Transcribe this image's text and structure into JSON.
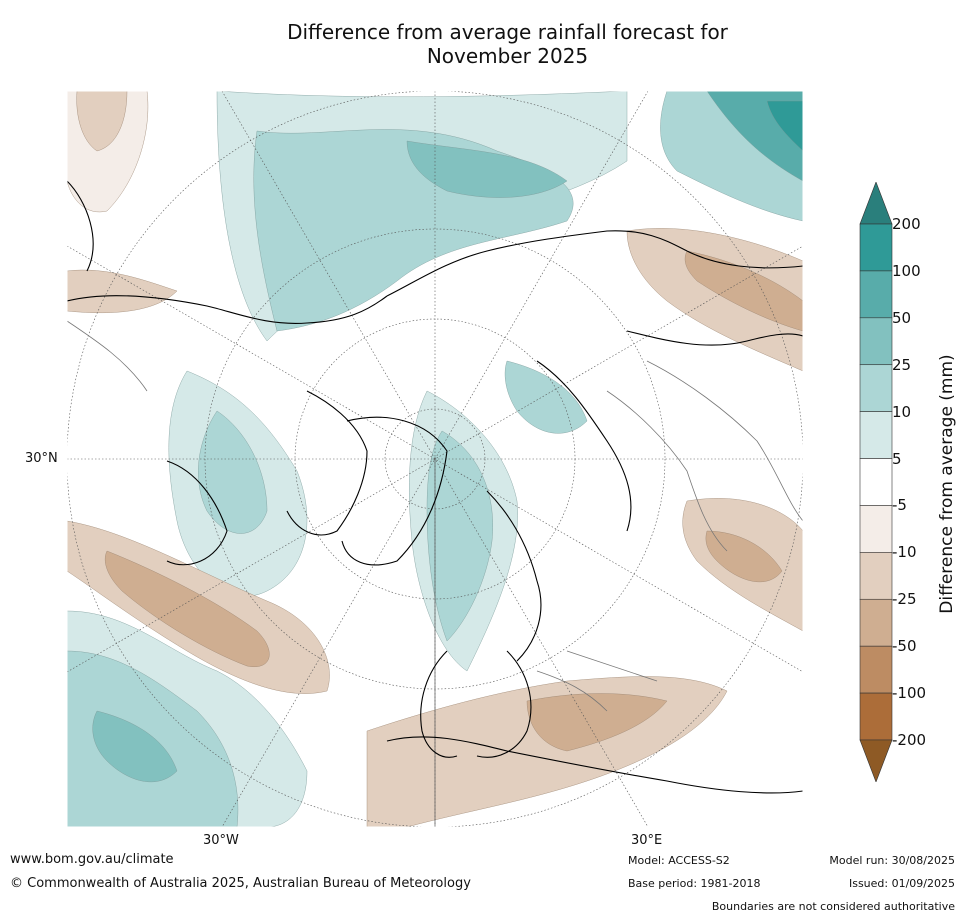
{
  "title_line1": "Difference from average rainfall forecast for",
  "title_line2": "November 2025",
  "map": {
    "lat_label": "30°N",
    "lon_labels": [
      "30°W",
      "30°E"
    ]
  },
  "legend": {
    "label": "Difference from average (mm)",
    "ticks": [
      "200",
      "100",
      "50",
      "25",
      "10",
      "5",
      "-5",
      "-10",
      "-25",
      "-50",
      "-100",
      "-200"
    ],
    "colors": [
      "#2a7f7c",
      "#2f9a97",
      "#58acaa",
      "#82c1bf",
      "#acd6d5",
      "#d5e9e8",
      "#ffffff",
      "#f4ede8",
      "#e2cfbf",
      "#cfae91",
      "#bd8c63",
      "#ac6d39",
      "#8e5a25"
    ]
  },
  "footer": {
    "website": "www.bom.gov.au/climate",
    "copyright": "© Commonwealth of Australia 2025, Australian Bureau of Meteorology",
    "model": "Model: ACCESS-S2",
    "base_period": "Base period: 1981-2018",
    "model_run": "Model run: 30/08/2025",
    "issued": "Issued: 01/09/2025",
    "disclaimer": "Boundaries are not considered authoritative"
  }
}
